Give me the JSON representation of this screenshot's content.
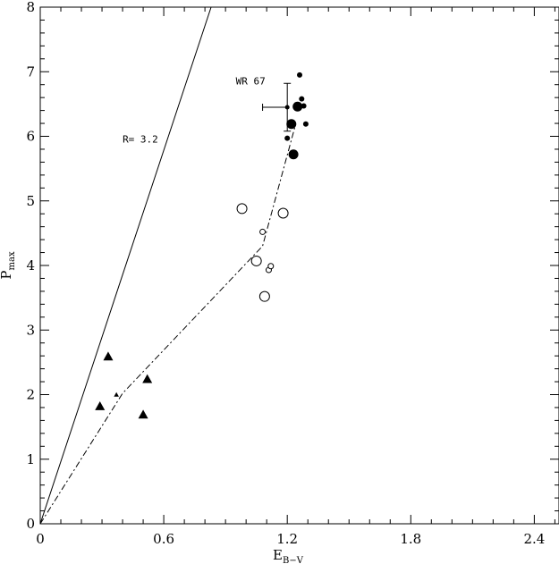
{
  "chart_data": {
    "type": "scatter",
    "title": "",
    "xlabel": {
      "main": "E",
      "sub": "B−V"
    },
    "ylabel": {
      "main": "P",
      "sub": "max"
    },
    "xlim": [
      0,
      2.52
    ],
    "ylim": [
      0,
      8
    ],
    "xticks": [
      0,
      0.6,
      1.2,
      1.8,
      2.4
    ],
    "xtick_labels": [
      "0",
      "0.6",
      "1.2",
      "1.8",
      "2.4"
    ],
    "yticks": [
      0,
      1,
      2,
      3,
      4,
      5,
      6,
      7,
      8
    ],
    "ytick_labels": [
      "0",
      "1",
      "2",
      "3",
      "4",
      "5",
      "6",
      "7",
      "8"
    ],
    "grid": false,
    "series": [
      {
        "marker": "filled-triangle",
        "points": [
          {
            "x": 0.29,
            "y": 1.82,
            "size": "large"
          },
          {
            "x": 0.33,
            "y": 2.59,
            "size": "large"
          },
          {
            "x": 0.37,
            "y": 2.0,
            "size": "small"
          },
          {
            "x": 0.5,
            "y": 1.69,
            "size": "large"
          },
          {
            "x": 0.52,
            "y": 2.24,
            "size": "large"
          }
        ]
      },
      {
        "marker": "open-circle",
        "points": [
          {
            "x": 0.98,
            "y": 4.88,
            "size": "large"
          },
          {
            "x": 1.05,
            "y": 4.07,
            "size": "large"
          },
          {
            "x": 1.09,
            "y": 3.52,
            "size": "large"
          },
          {
            "x": 1.08,
            "y": 4.52,
            "size": "small"
          },
          {
            "x": 1.11,
            "y": 3.93,
            "size": "small"
          },
          {
            "x": 1.12,
            "y": 3.99,
            "size": "small"
          },
          {
            "x": 1.18,
            "y": 4.81,
            "size": "large"
          }
        ]
      },
      {
        "marker": "filled-circle",
        "points": [
          {
            "x": 1.2,
            "y": 5.97,
            "size": "small"
          },
          {
            "x": 1.22,
            "y": 6.19,
            "size": "large"
          },
          {
            "x": 1.23,
            "y": 5.72,
            "size": "large"
          },
          {
            "x": 1.25,
            "y": 6.46,
            "size": "large"
          },
          {
            "x": 1.26,
            "y": 6.95,
            "size": "small"
          },
          {
            "x": 1.27,
            "y": 6.58,
            "size": "small"
          },
          {
            "x": 1.28,
            "y": 6.47,
            "size": "small"
          },
          {
            "x": 1.29,
            "y": 6.19,
            "size": "small"
          }
        ]
      }
    ],
    "error_bar_point": {
      "label": "WR 67",
      "x": 1.2,
      "y": 6.45,
      "x_err": [
        0.12,
        0.0
      ],
      "y_err": [
        0.37,
        0.37
      ]
    },
    "lines": [
      {
        "style": "solid",
        "label": "R= 3.2",
        "points": [
          [
            0,
            0
          ],
          [
            0.83,
            8
          ]
        ]
      },
      {
        "style": "dash-dot",
        "label": "",
        "points": [
          [
            0,
            0
          ],
          [
            0.4,
            2.02
          ],
          [
            1.08,
            4.3
          ],
          [
            1.24,
            6.18
          ]
        ]
      }
    ]
  }
}
